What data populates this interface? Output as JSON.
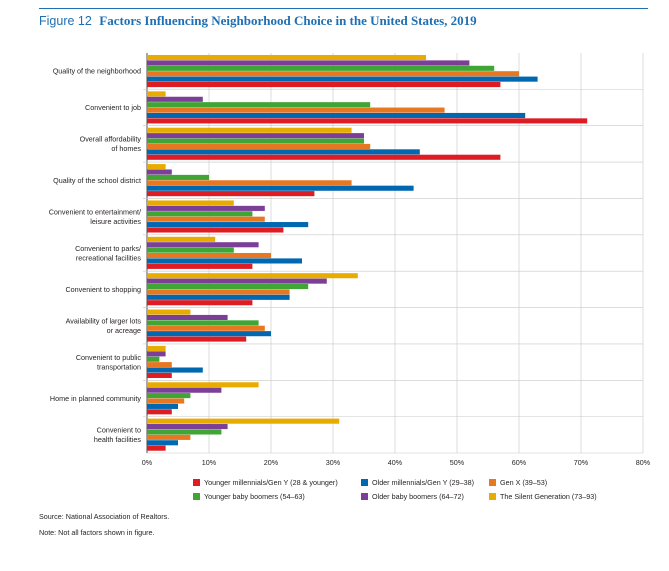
{
  "header": {
    "figure_number": "Figure 12",
    "title": "Factors Influencing Neighborhood Choice in the United States, 2019"
  },
  "chart_data": {
    "type": "bar",
    "orientation": "horizontal",
    "title": "Factors Influencing Neighborhood Choice in the United States, 2019",
    "xlim": [
      0,
      80
    ],
    "xticks": [
      "0%",
      "10%",
      "20%",
      "30%",
      "40%",
      "50%",
      "60%",
      "70%",
      "80%"
    ],
    "tick_values": [
      0,
      10,
      20,
      30,
      40,
      50,
      60,
      70,
      80
    ],
    "grid": true,
    "legend_position": "bottom",
    "categories": [
      [
        "Quality of the neighborhood"
      ],
      [
        "Convenient to job"
      ],
      [
        "Overall affordability",
        "of homes"
      ],
      [
        "Quality of the school district"
      ],
      [
        "Convenient to entertainment/",
        "leisure activities"
      ],
      [
        "Convenient to parks/",
        "recreational facilities"
      ],
      [
        "Convenient to shopping"
      ],
      [
        "Availability of larger lots",
        "or acreage"
      ],
      [
        "Convenient to public",
        "transportation"
      ],
      [
        "Home in planned community"
      ],
      [
        "Convenient to",
        "health facilities"
      ]
    ],
    "series": [
      {
        "name": "The Silent Generation (73–93)",
        "color": "#e8ac00",
        "values": [
          45,
          3,
          33,
          3,
          14,
          11,
          34,
          7,
          3,
          18,
          31
        ]
      },
      {
        "name": "Older baby boomers (64–72)",
        "color": "#7b3f98",
        "values": [
          52,
          9,
          35,
          4,
          19,
          18,
          29,
          13,
          3,
          12,
          13
        ]
      },
      {
        "name": "Younger baby boomers (54–63)",
        "color": "#3fa535",
        "values": [
          56,
          36,
          35,
          10,
          17,
          14,
          26,
          18,
          2,
          7,
          12
        ]
      },
      {
        "name": "Gen X (39–53)",
        "color": "#e87722",
        "values": [
          60,
          48,
          36,
          33,
          19,
          20,
          23,
          19,
          4,
          6,
          7
        ]
      },
      {
        "name": "Older millennials/Gen Y (29–38)",
        "color": "#0067b1",
        "values": [
          63,
          61,
          44,
          43,
          26,
          25,
          23,
          20,
          9,
          5,
          5
        ]
      },
      {
        "name": "Younger millennials/Gen Y (28 & younger)",
        "color": "#dd1c24",
        "values": [
          57,
          71,
          57,
          27,
          22,
          17,
          17,
          16,
          4,
          4,
          3
        ]
      }
    ],
    "legend_order": [
      "Younger millennials/Gen Y (28 & younger)",
      "Older millennials/Gen Y (29–38)",
      "Gen X (39–53)",
      "Younger baby boomers (54–63)",
      "Older baby boomers (64–72)",
      "The Silent Generation (73–93)"
    ]
  },
  "legend": [
    {
      "label": "Younger millennials/Gen Y (28 & younger)",
      "color": "#dd1c24"
    },
    {
      "label": "Older millennials/Gen Y (29–38)",
      "color": "#0067b1"
    },
    {
      "label": "Gen X (39–53)",
      "color": "#e87722"
    },
    {
      "label": "Younger baby boomers (54–63)",
      "color": "#3fa535"
    },
    {
      "label": "Older baby boomers (64–72)",
      "color": "#7b3f98"
    },
    {
      "label": "The Silent Generation (73–93)",
      "color": "#e8ac00"
    }
  ],
  "footer": {
    "source": "Source: National Association of Realtors.",
    "note": "Note: Not all factors shown in figure."
  }
}
